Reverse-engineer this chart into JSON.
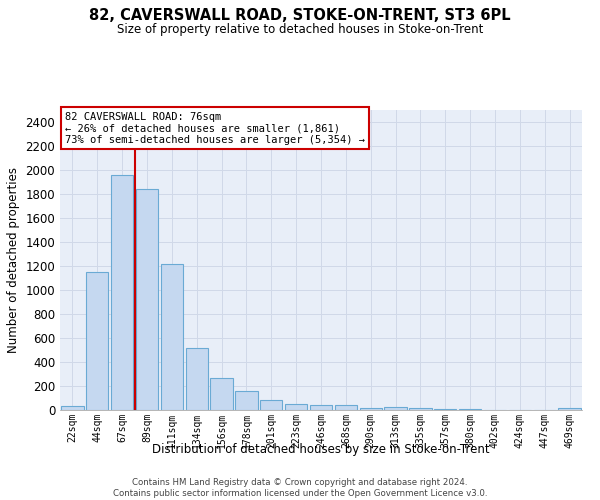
{
  "title": "82, CAVERSWALL ROAD, STOKE-ON-TRENT, ST3 6PL",
  "subtitle": "Size of property relative to detached houses in Stoke-on-Trent",
  "xlabel": "Distribution of detached houses by size in Stoke-on-Trent",
  "ylabel": "Number of detached properties",
  "categories": [
    "22sqm",
    "44sqm",
    "67sqm",
    "89sqm",
    "111sqm",
    "134sqm",
    "156sqm",
    "178sqm",
    "201sqm",
    "223sqm",
    "246sqm",
    "268sqm",
    "290sqm",
    "313sqm",
    "335sqm",
    "357sqm",
    "380sqm",
    "402sqm",
    "424sqm",
    "447sqm",
    "469sqm"
  ],
  "values": [
    30,
    1150,
    1960,
    1840,
    1215,
    515,
    265,
    155,
    80,
    50,
    42,
    40,
    18,
    22,
    14,
    5,
    5,
    0,
    0,
    0,
    18
  ],
  "bar_color": "#c5d8f0",
  "bar_edge_color": "#6aaad4",
  "grid_color": "#d0d8e8",
  "bg_color": "#e8eef8",
  "annotation_line1": "82 CAVERSWALL ROAD: 76sqm",
  "annotation_line2": "← 26% of detached houses are smaller (1,861)",
  "annotation_line3": "73% of semi-detached houses are larger (5,354) →",
  "annotation_box_color": "#ffffff",
  "annotation_box_edge": "#cc0000",
  "vline_x": 2.5,
  "vline_color": "#cc0000",
  "ylim": [
    0,
    2500
  ],
  "yticks": [
    0,
    200,
    400,
    600,
    800,
    1000,
    1200,
    1400,
    1600,
    1800,
    2000,
    2200,
    2400
  ],
  "footer_line1": "Contains HM Land Registry data © Crown copyright and database right 2024.",
  "footer_line2": "Contains public sector information licensed under the Open Government Licence v3.0."
}
